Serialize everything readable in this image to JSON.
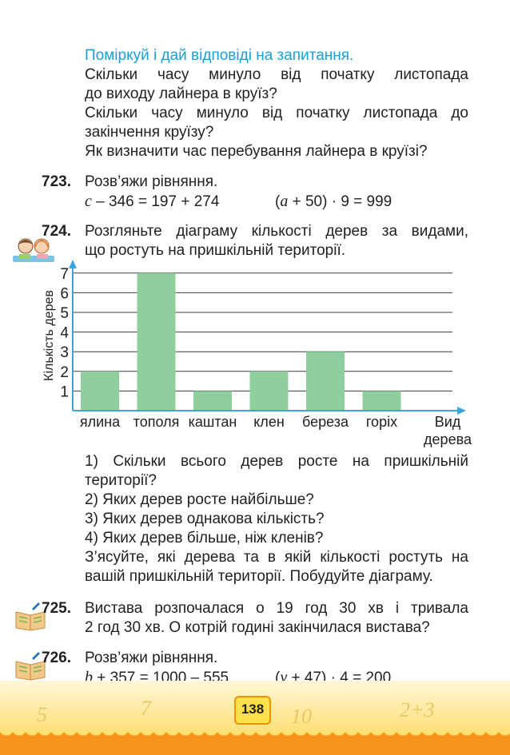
{
  "intro": {
    "heading": "Поміркуй і дай відповіді на запитання.",
    "q1a": "Скільки часу минуло від початку листопада",
    "q1b": "до виходу лайнера в круїз?",
    "q2a": "Скільки часу минуло від початку листопада до",
    "q2b": "закінчення круїзу?",
    "q3": "Як визначити час перебування лайнера в круїзі?"
  },
  "task723": {
    "number": "723.",
    "text": "Розв’яжи рівняння.",
    "eq1_var": "c",
    "eq1_rest": " – 346 = 197 + 274",
    "eq2_open": "(",
    "eq2_var": "a",
    "eq2_rest": " + 50) · 9 = 999"
  },
  "task724": {
    "number": "724.",
    "line1": "Розгляньте діаграму кількості дерев за видами,",
    "line2": "що ростуть на пришкільній території.",
    "questions": {
      "q1a": "1) Скільки всього дерев росте на пришкільній",
      "q1b": "території?",
      "q2": "2) Яких дерев росте найбільше?",
      "q3": "3) Яких дерев однакова кількість?",
      "q4": "4) Яких дерев більше, ніж кленів?",
      "extra1": "З’ясуйте, які дерева та в якій кількості ростуть на",
      "extra2": "вашій пришкільній території. Побудуйте діаграму."
    }
  },
  "chart_data": {
    "type": "bar",
    "categories": [
      "ялина",
      "тополя",
      "каштан",
      "клен",
      "береза",
      "горіх"
    ],
    "values": [
      2,
      7,
      1,
      2,
      3,
      1
    ],
    "ylabel": "Кількість дерев",
    "xlabel_line1": "Вид",
    "xlabel_line2": "дерева",
    "ylim": [
      0,
      7
    ],
    "yticks": [
      "1",
      "2",
      "3",
      "4",
      "5",
      "6",
      "7"
    ],
    "grid": true,
    "bar_color": "#8ecf9d",
    "axis_color": "#3aa6dd"
  },
  "task725": {
    "number": "725.",
    "line1": "Вистава розпочалася о 19 год 30 хв і тривала",
    "line2": "2 год 30 хв. О котрій годині закінчилася вистава?"
  },
  "task726": {
    "number": "726.",
    "text": "Розв’яжи рівняння.",
    "eq1_var": "b",
    "eq1_rest": " + 357 = 1000 – 555",
    "eq2_open": "(",
    "eq2_var": "y",
    "eq2_rest": " + 47) · 4 = 200"
  },
  "page_number": "138",
  "colors": {
    "accent": "#1aa0d8",
    "footer": "#f7941d"
  }
}
